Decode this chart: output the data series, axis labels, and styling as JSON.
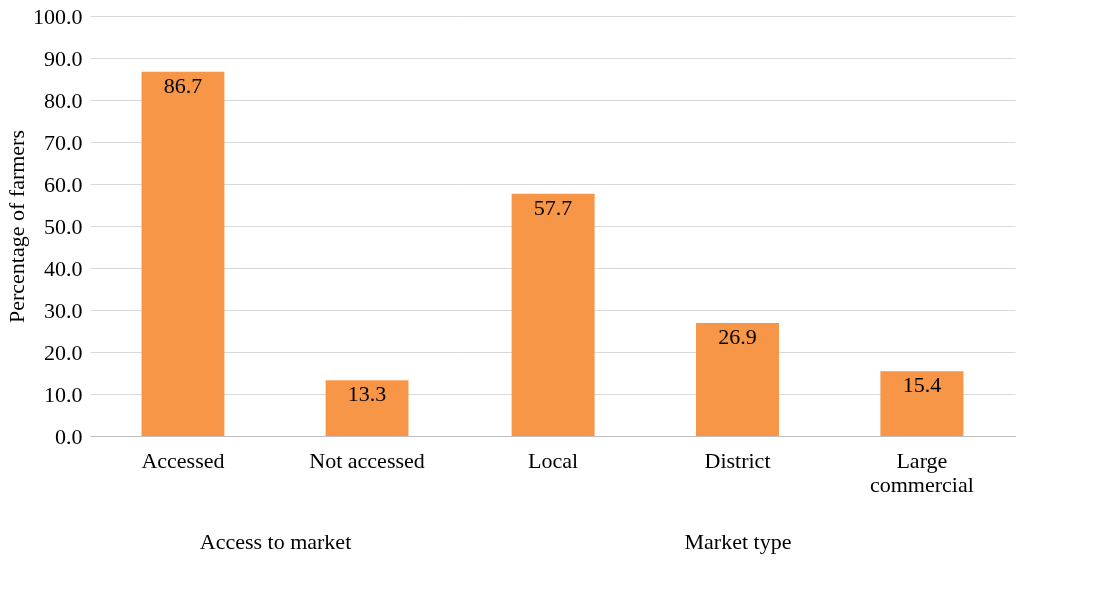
{
  "chart_data": [
    {
      "type": "bar",
      "xlabel": "Access to market",
      "ylabel": "Percentage of farmers",
      "categories": [
        "Accessed",
        "Not accessed"
      ],
      "series": [
        {
          "color": "#f79646",
          "values": [
            86.7,
            13.3
          ]
        }
      ],
      "ylim": [
        0,
        100
      ],
      "yticks": [
        {
          "value": 0,
          "label": "0.0"
        },
        {
          "value": 10,
          "label": "10.0"
        },
        {
          "value": 20,
          "label": "20.0"
        },
        {
          "value": 30,
          "label": "30.0"
        },
        {
          "value": 40,
          "label": "40.0"
        },
        {
          "value": 50,
          "label": "50.0"
        },
        {
          "value": 60,
          "label": "60.0"
        },
        {
          "value": 70,
          "label": "70.0"
        },
        {
          "value": 80,
          "label": "80.0"
        },
        {
          "value": 90,
          "label": "90.0"
        },
        {
          "value": 100,
          "label": "100.0"
        }
      ],
      "grid": "y",
      "data_labels": true
    },
    {
      "type": "bar",
      "xlabel": "Market type",
      "categories": [
        "Local",
        "District",
        "Large commercial"
      ],
      "series": [
        {
          "color": "#f79646",
          "values": [
            57.7,
            26.9,
            15.4
          ]
        }
      ],
      "ylim": [
        0,
        100
      ],
      "yticks": [
        0,
        10,
        20,
        30,
        40,
        50,
        60,
        70,
        80,
        90,
        100
      ],
      "grid": "y",
      "data_labels": true,
      "tick_labels": "x"
    }
  ]
}
